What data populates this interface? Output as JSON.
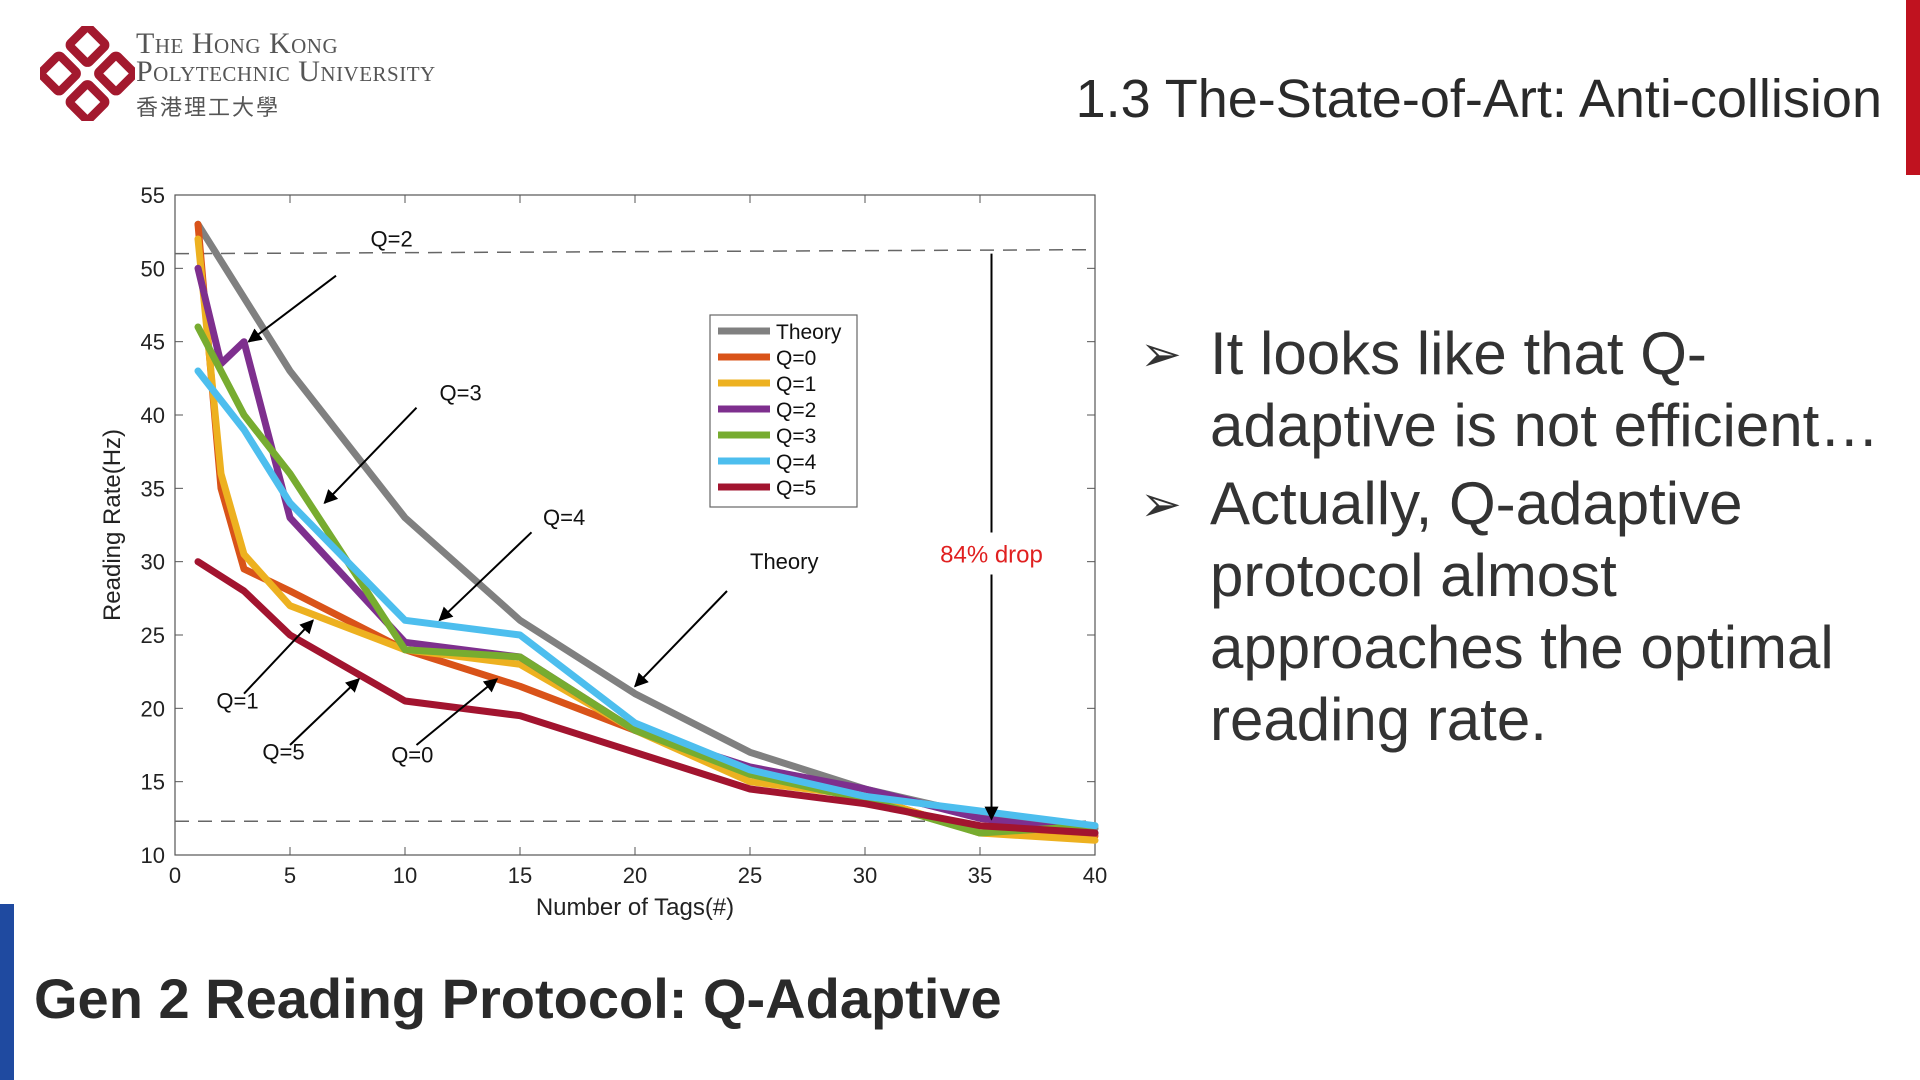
{
  "logo": {
    "line1": "The Hong Kong",
    "line2": "Polytechnic University",
    "line3": "香港理工大學"
  },
  "title": "1.3 The-State-of-Art: Anti-collision",
  "bullets": [
    {
      "text": "It looks like that Q-adaptive is not efficient…"
    },
    {
      "text": "Actually, Q-adaptive protocol almost approaches the optimal reading rate."
    }
  ],
  "footer": "Gen 2 Reading Protocol:  Q-Adaptive",
  "chart_data": {
    "type": "line",
    "title": "",
    "xlabel": "Number of Tags(#)",
    "ylabel": "Reading Rate(Hz)",
    "xlim": [
      0,
      40
    ],
    "ylim": [
      10,
      55
    ],
    "xticks": [
      0,
      5,
      10,
      15,
      20,
      25,
      30,
      35,
      40
    ],
    "yticks": [
      10,
      15,
      20,
      25,
      30,
      35,
      40,
      45,
      50,
      55
    ],
    "legend_position": "top-right",
    "series": [
      {
        "name": "Theory",
        "color": "#808080",
        "x": [
          1,
          5,
          10,
          15,
          20,
          25,
          30,
          35,
          40
        ],
        "y": [
          53,
          43,
          33,
          26,
          21,
          17,
          14.5,
          12.7,
          11.8
        ]
      },
      {
        "name": "Q=0",
        "color": "#d95319",
        "x": [
          1,
          2,
          3,
          5,
          10,
          15,
          20,
          25,
          30,
          35,
          40
        ],
        "y": [
          53,
          35,
          29.5,
          28,
          24,
          21.5,
          18.5,
          15.5,
          14,
          11.5,
          11.3
        ]
      },
      {
        "name": "Q=1",
        "color": "#edb120",
        "x": [
          1,
          2,
          3,
          5,
          10,
          15,
          20,
          25,
          30,
          35,
          40
        ],
        "y": [
          52,
          36,
          30.5,
          27,
          24,
          23,
          18.5,
          15,
          14,
          11.5,
          11
        ]
      },
      {
        "name": "Q=2",
        "color": "#7e2f8e",
        "x": [
          1,
          2,
          3,
          5,
          10,
          15,
          20,
          25,
          30,
          35,
          40
        ],
        "y": [
          50,
          43.5,
          45,
          33,
          24.5,
          23.5,
          18.5,
          16,
          14.5,
          12.5,
          11.5
        ]
      },
      {
        "name": "Q=3",
        "color": "#77ac30",
        "x": [
          1,
          3,
          5,
          10,
          15,
          20,
          25,
          30,
          35,
          40
        ],
        "y": [
          46,
          40,
          36,
          24,
          23.5,
          18.5,
          15.5,
          13.8,
          11.5,
          12
        ]
      },
      {
        "name": "Q=4",
        "color": "#4dbeee",
        "x": [
          1,
          3,
          5,
          10,
          15,
          20,
          25,
          30,
          35,
          40
        ],
        "y": [
          43,
          39,
          34,
          26,
          25,
          19,
          15.8,
          14,
          13,
          12
        ]
      },
      {
        "name": "Q=5",
        "color": "#a2142f",
        "x": [
          1,
          3,
          5,
          10,
          15,
          20,
          25,
          30,
          35,
          40
        ],
        "y": [
          30,
          28,
          25,
          20.5,
          19.5,
          17,
          14.5,
          13.5,
          12,
          11.5
        ]
      }
    ],
    "reference_lines": [
      51,
      12.3
    ],
    "drop_annotation": {
      "label": "84% drop",
      "x": 35.5,
      "y_top": 51,
      "y_bottom": 12.3
    },
    "annotations": [
      {
        "label": "Q=2",
        "text_x": 8.5,
        "text_y": 51.5,
        "arrow_from": [
          7,
          49.5
        ],
        "arrow_to": [
          3.2,
          45
        ]
      },
      {
        "label": "Q=3",
        "text_x": 11.5,
        "text_y": 41,
        "arrow_from": [
          10.5,
          40.5
        ],
        "arrow_to": [
          6.5,
          34
        ]
      },
      {
        "label": "Q=4",
        "text_x": 16,
        "text_y": 32.5,
        "arrow_from": [
          15.5,
          32
        ],
        "arrow_to": [
          11.5,
          26
        ]
      },
      {
        "label": "Theory",
        "text_x": 25,
        "text_y": 29.5,
        "arrow_from": [
          24,
          28
        ],
        "arrow_to": [
          20,
          21.5
        ]
      },
      {
        "label": "Q=1",
        "text_x": 1.8,
        "text_y": 20,
        "arrow_from": [
          3,
          21
        ],
        "arrow_to": [
          6,
          26
        ]
      },
      {
        "label": "Q=5",
        "text_x": 3.8,
        "text_y": 16.5,
        "arrow_from": [
          5,
          17.5
        ],
        "arrow_to": [
          8,
          22
        ]
      },
      {
        "label": "Q=0",
        "text_x": 9.4,
        "text_y": 16.3,
        "arrow_from": [
          10.5,
          17.5
        ],
        "arrow_to": [
          14,
          22
        ]
      }
    ]
  }
}
